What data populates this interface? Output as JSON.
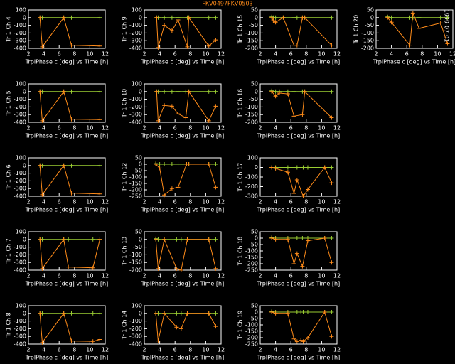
{
  "title": "FKV0497FKV0503",
  "date": "1999-07-01",
  "chart_data": [
    {
      "type": "line",
      "ylabel": "Tr 1 Ch 4",
      "xlabel": "TrplPhase c [deg] vs Time [h]",
      "x": [
        3.5,
        3.8,
        6.6,
        7.6,
        11.3
      ],
      "xlim": [
        2,
        12
      ],
      "xticks": [
        2,
        4,
        6,
        8,
        10,
        12
      ],
      "ylim": [
        -400,
        100
      ],
      "yticks": [
        -400,
        -300,
        -200,
        -100,
        0,
        100
      ],
      "series": [
        {
          "color": "#ff8c1a",
          "values": [
            0,
            -380,
            0,
            -360,
            -370
          ]
        },
        {
          "color": "#9acd32",
          "values": [
            0,
            0,
            0,
            0,
            0
          ]
        }
      ]
    },
    {
      "type": "line",
      "ylabel": "Tr 1 Ch 9",
      "xlabel": "TrplPhase c [deg] vs Time [h]",
      "x": [
        3.6,
        3.8,
        4.6,
        5.6,
        6.4,
        7.6,
        7.8,
        10.4,
        11.3
      ],
      "xlim": [
        2,
        12
      ],
      "xticks": [
        2,
        4,
        6,
        8,
        10,
        12
      ],
      "ylim": [
        -400,
        100
      ],
      "yticks": [
        -400,
        -300,
        -200,
        -100,
        0,
        100
      ],
      "series": [
        {
          "color": "#ff8c1a",
          "values": [
            0,
            -390,
            -100,
            -170,
            -30,
            -380,
            0,
            -370,
            -290
          ]
        },
        {
          "color": "#9acd32",
          "values": [
            0,
            0,
            0,
            0,
            0,
            0,
            0,
            0,
            0
          ]
        }
      ]
    },
    {
      "type": "line",
      "ylabel": "Tr 1 Ch 15",
      "xlabel": "TrplPhase c [deg] vs Time [h]",
      "x": [
        3.5,
        3.7,
        4,
        5,
        6.4,
        6.8,
        7.5,
        7.8,
        11.3
      ],
      "xlim": [
        2,
        12
      ],
      "xticks": [
        2,
        4,
        6,
        8,
        10,
        12
      ],
      "ylim": [
        -200,
        50
      ],
      "yticks": [
        -200,
        -150,
        -100,
        -50,
        0,
        50
      ],
      "series": [
        {
          "color": "#ff8c1a",
          "values": [
            0,
            -20,
            -30,
            0,
            -180,
            -180,
            0,
            0,
            -180
          ]
        },
        {
          "color": "#9acd32",
          "values": [
            5,
            0,
            0,
            0,
            0,
            0,
            0,
            0,
            0
          ]
        }
      ]
    },
    {
      "type": "line",
      "ylabel": "Tr 1 Ch 20",
      "xlabel": "TrplPhase c [deg] vs Time [h]",
      "x": [
        3.5,
        4,
        6.4,
        6.8,
        7.6,
        10.4,
        11.3
      ],
      "xlim": [
        2,
        12
      ],
      "xticks": [
        2,
        4,
        6,
        8,
        10,
        12
      ],
      "ylim": [
        -200,
        50
      ],
      "yticks": [
        -200,
        -150,
        -100,
        -50,
        0,
        50
      ],
      "series": [
        {
          "color": "#ff8c1a",
          "values": [
            0,
            -30,
            -180,
            30,
            -70,
            -35,
            -170
          ]
        },
        {
          "color": "#9acd32",
          "values": [
            5,
            0,
            0,
            0,
            0,
            0,
            0
          ]
        }
      ]
    },
    {
      "type": "line",
      "ylabel": "Tr 1 Ch 5",
      "xlabel": "TrplPhase c [deg] vs Time [h]",
      "x": [
        3.5,
        3.8,
        6.6,
        7.6,
        11.3
      ],
      "xlim": [
        2,
        12
      ],
      "xticks": [
        2,
        4,
        6,
        8,
        10,
        12
      ],
      "ylim": [
        -400,
        100
      ],
      "yticks": [
        -400,
        -300,
        -200,
        -100,
        0,
        100
      ],
      "series": [
        {
          "color": "#ff8c1a",
          "values": [
            0,
            -380,
            0,
            -360,
            -365
          ]
        },
        {
          "color": "#9acd32",
          "values": [
            0,
            0,
            0,
            0,
            0
          ]
        }
      ]
    },
    {
      "type": "line",
      "ylabel": "Tr 1 Ch 10",
      "xlabel": "TrplPhase c [deg] vs Time [h]",
      "x": [
        3.6,
        3.8,
        4.6,
        5.6,
        6.4,
        7.4,
        7.8,
        10.4,
        11.3
      ],
      "xlim": [
        2,
        12
      ],
      "xticks": [
        2,
        4,
        6,
        8,
        10,
        12
      ],
      "ylim": [
        -400,
        100
      ],
      "yticks": [
        -400,
        -300,
        -200,
        -100,
        0,
        100
      ],
      "series": [
        {
          "color": "#ff8c1a",
          "values": [
            0,
            -380,
            -180,
            -190,
            -290,
            -340,
            0,
            -380,
            -190
          ]
        },
        {
          "color": "#9acd32",
          "values": [
            0,
            0,
            0,
            0,
            0,
            0,
            0,
            0,
            0
          ]
        }
      ]
    },
    {
      "type": "line",
      "ylabel": "Tr 1 Ch 16",
      "xlabel": "TrplPhase c [deg] vs Time [h]",
      "x": [
        3.5,
        4,
        4.5,
        5.6,
        6.4,
        7.5,
        7.8,
        11.3
      ],
      "xlim": [
        2,
        12
      ],
      "xticks": [
        2,
        4,
        6,
        8,
        10,
        12
      ],
      "ylim": [
        -200,
        50
      ],
      "yticks": [
        -200,
        -150,
        -100,
        -50,
        0,
        50
      ],
      "series": [
        {
          "color": "#ff8c1a",
          "values": [
            0,
            -30,
            -10,
            -15,
            -160,
            -150,
            0,
            -170
          ]
        },
        {
          "color": "#9acd32",
          "values": [
            5,
            0,
            0,
            0,
            0,
            0,
            0,
            0
          ]
        }
      ]
    },
    {
      "type": "line",
      "ylabel": "Tr 1 Ch 6",
      "xlabel": "TrplPhase c [deg] vs Time [h]",
      "x": [
        3.5,
        3.8,
        6.6,
        7.6,
        11.3
      ],
      "xlim": [
        2,
        12
      ],
      "xticks": [
        2,
        4,
        6,
        8,
        10,
        12
      ],
      "ylim": [
        -400,
        100
      ],
      "yticks": [
        -400,
        -300,
        -200,
        -100,
        0,
        100
      ],
      "series": [
        {
          "color": "#ff8c1a",
          "values": [
            0,
            -380,
            0,
            -360,
            -370
          ]
        },
        {
          "color": "#9acd32",
          "values": [
            0,
            0,
            0,
            0,
            0
          ]
        }
      ]
    },
    {
      "type": "line",
      "ylabel": "Tr 1 Ch 12",
      "xlabel": "TrplPhase c [deg] vs Time [h]",
      "x": [
        3.5,
        4,
        4.6,
        5.6,
        6.4,
        7.5,
        7.8,
        10.4,
        11.3
      ],
      "xlim": [
        2,
        12
      ],
      "xticks": [
        2,
        4,
        6,
        8,
        10,
        12
      ],
      "ylim": [
        -250,
        50
      ],
      "yticks": [
        -250,
        -200,
        -150,
        -100,
        -50,
        0,
        50
      ],
      "series": [
        {
          "color": "#ff8c1a",
          "values": [
            0,
            -30,
            -240,
            -190,
            -180,
            0,
            0,
            0,
            -180
          ]
        },
        {
          "color": "#9acd32",
          "values": [
            5,
            0,
            0,
            0,
            0,
            0,
            0,
            0,
            0
          ]
        }
      ]
    },
    {
      "type": "line",
      "ylabel": "Tr 1 Ch 17",
      "xlabel": "TrplPhase c [deg] vs Time [h]",
      "x": [
        3.5,
        4,
        5.6,
        6.4,
        6.8,
        7.6,
        8.2,
        10.4,
        11.3
      ],
      "xlim": [
        2,
        12
      ],
      "xticks": [
        2,
        4,
        6,
        8,
        10,
        12
      ],
      "ylim": [
        -300,
        100
      ],
      "yticks": [
        -300,
        -200,
        -100,
        0,
        100
      ],
      "series": [
        {
          "color": "#ff8c1a",
          "values": [
            0,
            -10,
            -50,
            -270,
            -130,
            -300,
            -230,
            0,
            -160
          ]
        },
        {
          "color": "#9acd32",
          "values": [
            0,
            0,
            0,
            0,
            0,
            0,
            0,
            0,
            0
          ]
        }
      ]
    },
    {
      "type": "line",
      "ylabel": "Tr 1 Ch 7",
      "xlabel": "TrplPhase c [deg] vs Time [h]",
      "x": [
        3.5,
        3.8,
        6.6,
        7.2,
        10.4,
        11.3
      ],
      "xlim": [
        2,
        12
      ],
      "xticks": [
        2,
        4,
        6,
        8,
        10,
        12
      ],
      "ylim": [
        -400,
        100
      ],
      "yticks": [
        -400,
        -300,
        -200,
        -100,
        0,
        100
      ],
      "series": [
        {
          "color": "#ff8c1a",
          "values": [
            0,
            -380,
            0,
            -360,
            -370,
            0
          ]
        },
        {
          "color": "#9acd32",
          "values": [
            0,
            0,
            0,
            0,
            0,
            0
          ]
        }
      ]
    },
    {
      "type": "line",
      "ylabel": "Tr 1 Ch 13",
      "xlabel": "TrplPhase c [deg] vs Time [h]",
      "x": [
        3.5,
        3.8,
        4.6,
        6.2,
        6.8,
        7.6,
        10.4,
        11.3
      ],
      "xlim": [
        2,
        12
      ],
      "xticks": [
        2,
        4,
        6,
        8,
        10,
        12
      ],
      "ylim": [
        -200,
        50
      ],
      "yticks": [
        -200,
        -150,
        -100,
        -50,
        0,
        50
      ],
      "series": [
        {
          "color": "#ff8c1a",
          "values": [
            0,
            -190,
            0,
            -190,
            -200,
            0,
            0,
            -190
          ]
        },
        {
          "color": "#9acd32",
          "values": [
            5,
            0,
            0,
            0,
            0,
            0,
            0,
            0
          ]
        }
      ]
    },
    {
      "type": "line",
      "ylabel": "Tr 1 Ch 18",
      "xlabel": "TrplPhase c [deg] vs Time [h]",
      "x": [
        3.5,
        4,
        5.6,
        6.4,
        6.8,
        7.5,
        8.2,
        10.4,
        11.3
      ],
      "xlim": [
        2,
        12
      ],
      "xticks": [
        2,
        4,
        6,
        8,
        10,
        12
      ],
      "ylim": [
        -250,
        50
      ],
      "yticks": [
        -250,
        -200,
        -150,
        -100,
        -50,
        0,
        50
      ],
      "series": [
        {
          "color": "#ff8c1a",
          "values": [
            0,
            -10,
            -10,
            -200,
            -120,
            -220,
            -20,
            0,
            -190
          ]
        },
        {
          "color": "#9acd32",
          "values": [
            5,
            0,
            0,
            0,
            0,
            0,
            0,
            0,
            0
          ]
        }
      ]
    },
    {
      "type": "line",
      "ylabel": "Tr 1 Ch 8",
      "xlabel": "TrplPhase c [deg] vs Time [h]",
      "x": [
        3.5,
        3.8,
        6.6,
        7.6,
        10.4,
        11.3
      ],
      "xlim": [
        2,
        12
      ],
      "xticks": [
        2,
        4,
        6,
        8,
        10,
        12
      ],
      "ylim": [
        -400,
        100
      ],
      "yticks": [
        -400,
        -300,
        -200,
        -100,
        0,
        100
      ],
      "series": [
        {
          "color": "#ff8c1a",
          "values": [
            0,
            -380,
            0,
            -360,
            -365,
            -340
          ]
        },
        {
          "color": "#9acd32",
          "values": [
            0,
            0,
            0,
            0,
            0,
            0
          ]
        }
      ]
    },
    {
      "type": "line",
      "ylabel": "Tr 1 Ch 14",
      "xlabel": "TrplPhase c [deg] vs Time [h]",
      "x": [
        3.5,
        3.8,
        4.6,
        6.2,
        6.8,
        7.6,
        10.4,
        11.3
      ],
      "xlim": [
        2,
        12
      ],
      "xticks": [
        2,
        4,
        6,
        8,
        10,
        12
      ],
      "ylim": [
        -400,
        100
      ],
      "yticks": [
        -400,
        -300,
        -200,
        -100,
        0,
        100
      ],
      "series": [
        {
          "color": "#ff8c1a",
          "values": [
            0,
            -360,
            0,
            -180,
            -200,
            0,
            0,
            -170
          ]
        },
        {
          "color": "#9acd32",
          "values": [
            0,
            0,
            0,
            0,
            0,
            0,
            0,
            0
          ]
        }
      ]
    },
    {
      "type": "line",
      "ylabel": "Tr 1 Ch 19",
      "xlabel": "TrplPhase c [deg] vs Time [h]",
      "x": [
        3.5,
        4,
        5.6,
        6.4,
        6.8,
        7.3,
        7.6,
        8.2,
        10.4,
        11.3
      ],
      "xlim": [
        2,
        12
      ],
      "xticks": [
        2,
        4,
        6,
        8,
        10,
        12
      ],
      "ylim": [
        -250,
        50
      ],
      "yticks": [
        -250,
        -200,
        -150,
        -100,
        -50,
        0,
        50
      ],
      "series": [
        {
          "color": "#ff8c1a",
          "values": [
            0,
            -10,
            -10,
            -210,
            -230,
            -220,
            -230,
            -200,
            0,
            -190
          ]
        },
        {
          "color": "#9acd32",
          "values": [
            5,
            0,
            0,
            0,
            0,
            0,
            0,
            0,
            0,
            0
          ]
        }
      ]
    }
  ]
}
